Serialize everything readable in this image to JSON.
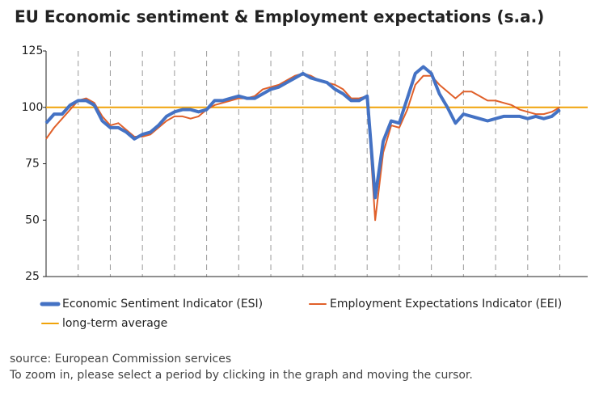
{
  "chart_data": {
    "type": "line",
    "title": "EU Economic sentiment & Employment expectations (s.a.)",
    "categories": [
      null,
      null,
      null,
      null,
      null,
      null,
      null,
      null,
      null,
      null,
      null,
      null,
      null,
      null,
      null,
      null,
      null,
      null,
      null,
      null,
      null,
      null,
      null,
      null,
      null,
      null,
      null,
      null,
      null,
      null,
      null,
      null,
      null,
      null,
      null,
      null,
      null,
      null,
      null,
      null,
      null,
      null,
      null,
      null,
      null,
      null,
      null,
      null,
      null,
      null,
      null,
      null,
      null,
      null,
      null,
      null,
      null,
      null,
      null,
      null,
      null,
      null,
      null,
      null,
      null
    ],
    "series": [
      {
        "name": "Economic Sentiment Indicator (ESI)",
        "color": "#4472c4",
        "width": 4,
        "values": [
          93,
          97,
          97,
          101,
          103,
          103,
          101,
          94,
          91,
          91,
          89,
          86,
          88,
          89,
          92,
          96,
          98,
          99,
          99,
          98,
          99,
          103,
          103,
          104,
          105,
          104,
          104,
          106,
          108,
          109,
          111,
          113,
          115,
          113,
          112,
          111,
          108,
          106,
          103,
          103,
          105,
          60,
          85,
          94,
          93,
          104,
          115,
          118,
          115,
          106,
          100,
          93,
          97,
          96,
          95,
          94,
          95,
          96,
          96,
          96,
          95,
          96,
          95,
          96,
          99
        ]
      },
      {
        "name": "Employment Expectations Indicator (EEI)",
        "color": "#e0602a",
        "width": 2,
        "values": [
          86,
          91,
          95,
          99,
          103,
          104,
          102,
          96,
          92,
          93,
          90,
          87,
          87,
          88,
          91,
          94,
          96,
          96,
          95,
          96,
          99,
          101,
          102,
          103,
          104,
          104,
          105,
          108,
          109,
          110,
          112,
          114,
          115,
          114,
          112,
          111,
          110,
          108,
          104,
          104,
          105,
          50,
          80,
          92,
          91,
          99,
          110,
          114,
          114,
          110,
          107,
          104,
          107,
          107,
          105,
          103,
          103,
          102,
          101,
          99,
          98,
          97,
          97,
          98,
          100
        ]
      }
    ],
    "average": {
      "name": "long-term average",
      "value": 100,
      "color": "#f0a30a"
    },
    "ylim": [
      25,
      125
    ],
    "yticks": [
      25,
      50,
      75,
      100,
      125
    ],
    "source": "source: European Commission services",
    "note": "To zoom in, please select a period by clicking in the graph and moving the cursor."
  }
}
